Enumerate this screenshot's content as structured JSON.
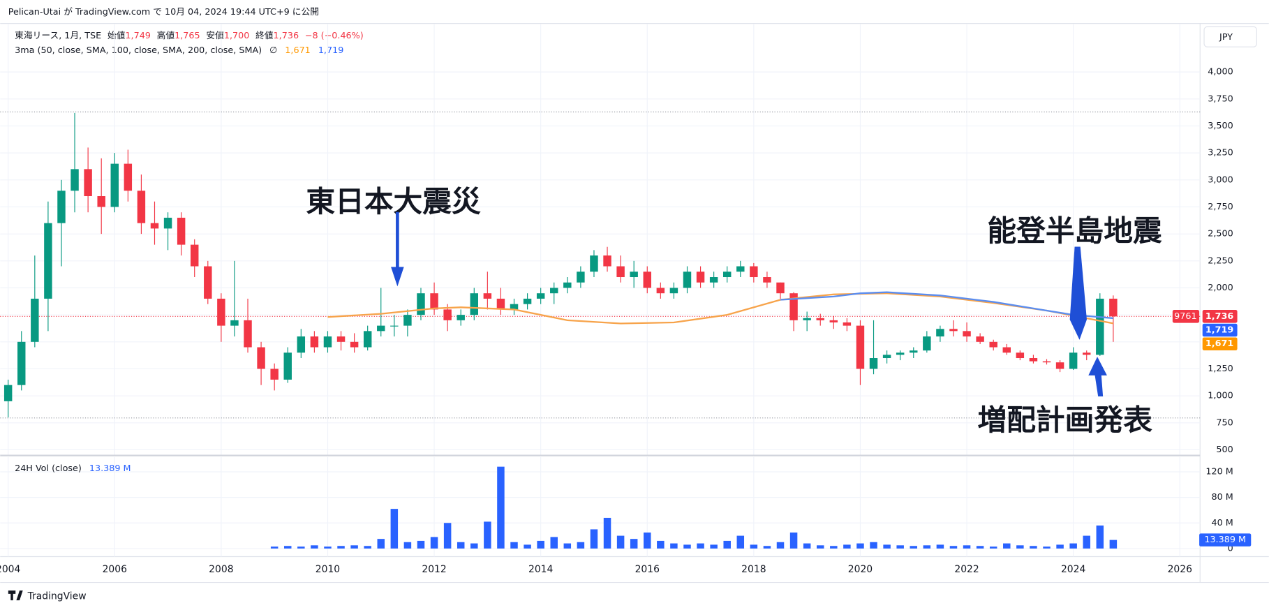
{
  "header": {
    "published": "Pelican-Utai が TradingView.com で 10月 04, 2024 19:44 UTC+9 に公開",
    "symbol": "東海リース, 1月, TSE",
    "ohlc": [
      {
        "label": "始値",
        "value": "1,749"
      },
      {
        "label": "高値",
        "value": "1,765"
      },
      {
        "label": "安値",
        "value": "1,700"
      },
      {
        "label": "終値",
        "value": "1,736"
      }
    ],
    "change": "−8 (−0.46%)",
    "indicator": "3ma (50, close, SMA, 100, close, SMA, 200, close, SMA)",
    "indicator_symbol": "∅",
    "indicator_values": [
      "1,671",
      "1,719"
    ],
    "currency": "JPY"
  },
  "chart_data": [
    {
      "type": "candlestick",
      "x": [
        2004,
        2004.25,
        2004.5,
        2004.75,
        2005,
        2005.25,
        2005.5,
        2005.75,
        2006,
        2006.25,
        2006.5,
        2006.75,
        2007,
        2007.25,
        2007.5,
        2007.75,
        2008,
        2008.25,
        2008.5,
        2008.75,
        2009,
        2009.25,
        2009.5,
        2009.75,
        2010,
        2010.25,
        2010.5,
        2010.75,
        2011,
        2011.25,
        2011.5,
        2011.75,
        2012,
        2012.25,
        2012.5,
        2012.75,
        2013,
        2013.25,
        2013.5,
        2013.75,
        2014,
        2014.25,
        2014.5,
        2014.75,
        2015,
        2015.25,
        2015.5,
        2015.75,
        2016,
        2016.25,
        2016.5,
        2016.75,
        2017,
        2017.25,
        2017.5,
        2017.75,
        2018,
        2018.25,
        2018.5,
        2018.75,
        2019,
        2019.25,
        2019.5,
        2019.75,
        2020,
        2020.25,
        2020.5,
        2020.75,
        2021,
        2021.25,
        2021.5,
        2021.75,
        2022,
        2022.25,
        2022.5,
        2022.75,
        2023,
        2023.25,
        2023.5,
        2023.75,
        2024,
        2024.25,
        2024.5,
        2024.75
      ],
      "open": [
        950,
        1100,
        1500,
        1900,
        2600,
        2900,
        3100,
        2850,
        2750,
        3150,
        2900,
        2600,
        2550,
        2650,
        2400,
        2200,
        1900,
        1650,
        1700,
        1450,
        1250,
        1150,
        1400,
        1550,
        1450,
        1550,
        1500,
        1450,
        1600,
        1650,
        1650,
        1750,
        1950,
        1800,
        1700,
        1750,
        1950,
        1900,
        1800,
        1850,
        1900,
        1950,
        2000,
        2050,
        2150,
        2300,
        2200,
        2100,
        2150,
        2000,
        1950,
        2000,
        2150,
        2050,
        2100,
        2150,
        2200,
        2100,
        2050,
        1950,
        1700,
        1720,
        1700,
        1680,
        1650,
        1250,
        1350,
        1380,
        1400,
        1420,
        1550,
        1620,
        1600,
        1550,
        1500,
        1450,
        1400,
        1350,
        1320,
        1310,
        1250,
        1400,
        1380,
        1900
      ],
      "high": [
        1150,
        1600,
        2300,
        2800,
        3000,
        3620,
        3300,
        3200,
        3250,
        3280,
        3050,
        2800,
        2700,
        2700,
        2450,
        2250,
        1950,
        2250,
        1900,
        1500,
        1300,
        1450,
        1620,
        1600,
        1600,
        1600,
        1580,
        1650,
        2000,
        1750,
        1800,
        2000,
        2050,
        1850,
        1800,
        2000,
        2150,
        2000,
        1900,
        1950,
        2000,
        2050,
        2100,
        2200,
        2350,
        2380,
        2300,
        2250,
        2200,
        2050,
        2050,
        2200,
        2200,
        2150,
        2200,
        2250,
        2230,
        2150,
        2050,
        1960,
        1780,
        1760,
        1740,
        1720,
        1700,
        1700,
        1420,
        1420,
        1450,
        1600,
        1650,
        1700,
        1680,
        1580,
        1520,
        1480,
        1420,
        1380,
        1340,
        1330,
        1450,
        1420,
        1950,
        1930
      ],
      "low": [
        800,
        1050,
        1450,
        1600,
        2200,
        2700,
        2700,
        2500,
        2700,
        2800,
        2500,
        2400,
        2350,
        2300,
        2100,
        1850,
        1500,
        1550,
        1400,
        1100,
        1050,
        1120,
        1350,
        1400,
        1400,
        1420,
        1400,
        1420,
        1550,
        1550,
        1550,
        1700,
        1750,
        1600,
        1650,
        1700,
        1800,
        1750,
        1750,
        1800,
        1850,
        1850,
        1950,
        2000,
        2100,
        2150,
        2050,
        2000,
        1950,
        1900,
        1900,
        1950,
        2000,
        2000,
        2050,
        2100,
        2050,
        2000,
        1900,
        1600,
        1600,
        1650,
        1620,
        1600,
        1100,
        1200,
        1300,
        1330,
        1350,
        1400,
        1500,
        1550,
        1500,
        1480,
        1420,
        1380,
        1330,
        1300,
        1290,
        1220,
        1240,
        1330,
        1370,
        1500
      ],
      "close": [
        1100,
        1500,
        1900,
        2600,
        2900,
        3100,
        2850,
        2750,
        3150,
        2900,
        2600,
        2550,
        2650,
        2400,
        2200,
        1900,
        1650,
        1700,
        1450,
        1250,
        1150,
        1400,
        1550,
        1450,
        1550,
        1500,
        1450,
        1600,
        1650,
        1650,
        1750,
        1950,
        1800,
        1700,
        1750,
        1950,
        1900,
        1800,
        1850,
        1900,
        1950,
        2000,
        2050,
        2150,
        2300,
        2200,
        2100,
        2150,
        2000,
        1950,
        2000,
        2150,
        2050,
        2100,
        2150,
        2200,
        2100,
        2050,
        1950,
        1700,
        1720,
        1700,
        1680,
        1650,
        1250,
        1350,
        1380,
        1400,
        1420,
        1550,
        1620,
        1600,
        1550,
        1500,
        1450,
        1400,
        1350,
        1320,
        1310,
        1250,
        1400,
        1380,
        1900,
        1736
      ],
      "up_color": "#089981",
      "down_color": "#f23645",
      "xlim": [
        2003.85,
        2026.38
      ],
      "xticks": [
        2004,
        2006,
        2008,
        2010,
        2012,
        2014,
        2016,
        2018,
        2020,
        2022,
        2024,
        2026
      ],
      "ylim": [
        455,
        4442
      ],
      "yticks": [
        500,
        750,
        {
          "value": 1000,
          "label": "1,000"
        },
        {
          "value": 1250,
          "label": "1,250"
        },
        {
          "value": 1500,
          "label": "1,500"
        },
        {
          "value": 1750,
          "label": "1,750"
        },
        {
          "value": 2000,
          "label": "2,000"
        },
        {
          "value": 2250,
          "label": "2,250"
        },
        {
          "value": 2500,
          "label": "2,500"
        },
        {
          "value": 2750,
          "label": "2,750"
        },
        {
          "value": 3000,
          "label": "3,000"
        },
        {
          "value": 3250,
          "label": "3,250"
        },
        {
          "value": 3500,
          "label": "3,500"
        },
        {
          "value": 3750,
          "label": "3,750"
        },
        {
          "value": 4000,
          "label": "4,000"
        }
      ],
      "grid": true,
      "series": [
        {
          "color": "#f7a34a",
          "x": [
            2010,
            2011,
            2012,
            2012.5,
            2013.5,
            2014.5,
            2015.5,
            2016.5,
            2017.5,
            2018.5,
            2019.5,
            2020.5,
            2021.5,
            2022.5,
            2023.5,
            2024.75
          ],
          "values": [
            1730,
            1760,
            1810,
            1820,
            1800,
            1700,
            1670,
            1680,
            1750,
            1890,
            1940,
            1950,
            1920,
            1860,
            1790,
            1671
          ]
        },
        {
          "color": "#5b8def",
          "x": [
            2018.5,
            2019.5,
            2020,
            2020.5,
            2021.5,
            2022.5,
            2023.5,
            2024,
            2024.75
          ],
          "values": [
            1890,
            1920,
            1950,
            1960,
            1930,
            1870,
            1790,
            1750,
            1719
          ]
        }
      ],
      "hlines": [
        3630,
        795
      ],
      "ticker_code": "9761",
      "price_badges": [
        {
          "value": 1736,
          "label": "1,736",
          "color": "#f23645"
        },
        {
          "value": 1719,
          "label": "1,719",
          "color": "#2962ff"
        },
        {
          "value": 1671,
          "label": "1,671",
          "color": "#ff9800"
        }
      ],
      "annotations": [
        "東日本大震災",
        "能登半島地震",
        "増配計画発表"
      ]
    },
    {
      "type": "bar",
      "title": "24H Vol (close)",
      "x": [
        2009,
        2009.25,
        2009.5,
        2009.75,
        2010,
        2010.25,
        2010.5,
        2010.75,
        2011,
        2011.25,
        2011.5,
        2011.75,
        2012,
        2012.25,
        2012.5,
        2012.75,
        2013,
        2013.25,
        2013.5,
        2013.75,
        2014,
        2014.25,
        2014.5,
        2014.75,
        2015,
        2015.25,
        2015.5,
        2015.75,
        2016,
        2016.25,
        2016.5,
        2016.75,
        2017,
        2017.25,
        2017.5,
        2017.75,
        2018,
        2018.25,
        2018.5,
        2018.75,
        2019,
        2019.25,
        2019.5,
        2019.75,
        2020,
        2020.25,
        2020.5,
        2020.75,
        2021,
        2021.25,
        2021.5,
        2021.75,
        2022,
        2022.25,
        2022.5,
        2022.75,
        2023,
        2023.25,
        2023.5,
        2023.75,
        2024,
        2024.25,
        2024.5,
        2024.75
      ],
      "values": [
        3,
        4,
        3,
        5,
        3,
        4,
        5,
        4,
        15,
        62,
        10,
        12,
        18,
        40,
        10,
        8,
        42,
        128,
        10,
        6,
        12,
        18,
        8,
        10,
        30,
        48,
        20,
        15,
        25,
        12,
        8,
        6,
        8,
        6,
        12,
        20,
        6,
        4,
        10,
        25,
        8,
        5,
        4,
        6,
        8,
        10,
        6,
        5,
        4,
        5,
        6,
        4,
        5,
        4,
        3,
        8,
        5,
        4,
        3,
        6,
        8,
        20,
        36,
        13.389
      ],
      "color": "#2962ff",
      "ylim": [
        0,
        143
      ],
      "yticks": [
        0,
        {
          "value": 40,
          "label": "40 M"
        },
        {
          "value": 80,
          "label": "80 M"
        },
        {
          "value": 120,
          "label": "120 M"
        }
      ],
      "last_label": {
        "value": 13.389,
        "label": "13.389 M"
      }
    }
  ],
  "footer": {
    "brand": "TradingView"
  }
}
